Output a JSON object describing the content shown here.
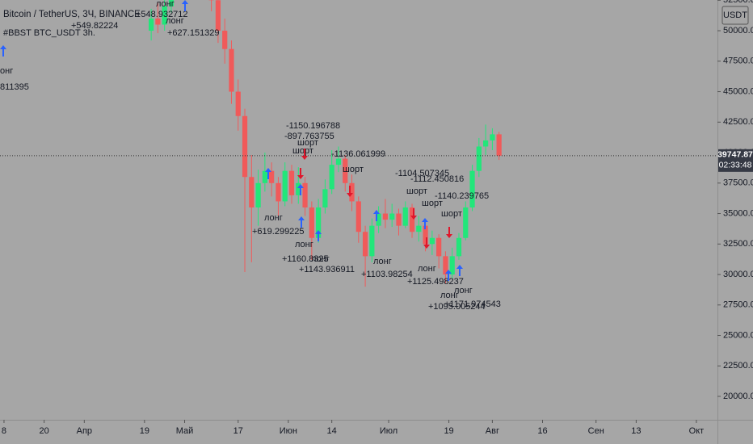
{
  "chart_data": {
    "type": "candlestick",
    "title": "Bitcoin / TetherUS, 3Ч, BINANCE",
    "subtitle": "#BBST BTC_USDT 3h.",
    "currency": "USDT",
    "up_color": "#22e67a",
    "down_color": "#f05a5a",
    "x": [
      44,
      46,
      48,
      50,
      52,
      54,
      56,
      58,
      60,
      62,
      64,
      66,
      68,
      70,
      72,
      74,
      76,
      78,
      80,
      82,
      84,
      86,
      88,
      90,
      92,
      94,
      96,
      98,
      100,
      102,
      104,
      106,
      108,
      110,
      112,
      114,
      116,
      118,
      120,
      122,
      124,
      126,
      128,
      130,
      132,
      134,
      136,
      138,
      140,
      142,
      144,
      146,
      148
    ],
    "open": [
      50000,
      51000,
      50500,
      52000,
      55000,
      56000,
      57000,
      56500,
      55000,
      54000,
      52500,
      50000,
      48500,
      45000,
      43000,
      38000,
      35500,
      37500,
      38500,
      37500,
      36000,
      38500,
      36500,
      37500,
      35500,
      33000,
      35500,
      37000,
      39000,
      39500,
      37500,
      36000,
      33500,
      31500,
      34000,
      35000,
      34500,
      35000,
      34000,
      35500,
      33500,
      34000,
      32500,
      33000,
      31500,
      30000,
      31500,
      33000,
      35500,
      38500,
      40500,
      41000,
      41500
    ],
    "high": [
      51800,
      52300,
      53000,
      55800,
      57000,
      58000,
      58200,
      57000,
      56000,
      54800,
      53200,
      51000,
      49200,
      46000,
      43600,
      39800,
      38600,
      40000,
      39200,
      38000,
      39200,
      39000,
      38800,
      38000,
      36000,
      36200,
      37800,
      40200,
      40500,
      39800,
      38200,
      36400,
      34000,
      34600,
      35600,
      36200,
      35800,
      35400,
      36000,
      35800,
      34800,
      34300,
      33600,
      33300,
      31900,
      32200,
      33400,
      36000,
      39000,
      41200,
      42300,
      42000,
      41700
    ],
    "low": [
      49200,
      49800,
      50000,
      51500,
      54200,
      55300,
      55600,
      54000,
      53000,
      51600,
      49000,
      47300,
      44000,
      41800,
      30200,
      31000,
      34000,
      36800,
      36400,
      34800,
      35600,
      35800,
      35800,
      34800,
      31200,
      32600,
      35000,
      36600,
      38400,
      36800,
      35200,
      32600,
      29000,
      31000,
      33400,
      33800,
      33900,
      33200,
      33800,
      33000,
      32700,
      31900,
      31600,
      30500,
      29300,
      29700,
      31200,
      32800,
      35200,
      38000,
      39800,
      40200,
      39400
    ],
    "close": [
      51000,
      50500,
      52000,
      55000,
      56000,
      57000,
      56500,
      55000,
      54000,
      52500,
      50000,
      48500,
      45000,
      43000,
      38000,
      35500,
      37500,
      38500,
      37500,
      36000,
      38500,
      36500,
      37500,
      35500,
      33000,
      35500,
      37000,
      39000,
      39500,
      37500,
      36000,
      33500,
      31500,
      34000,
      35000,
      34500,
      35000,
      34000,
      35500,
      33500,
      34000,
      32500,
      33000,
      31500,
      30000,
      31500,
      33000,
      35500,
      38500,
      40500,
      41000,
      41500,
      39748
    ],
    "xlim": [
      -1.2,
      213.3
    ],
    "xticks": [
      {
        "value": 0,
        "label": "8"
      },
      {
        "value": 12,
        "label": "20"
      },
      {
        "value": 24,
        "label": "Апр"
      },
      {
        "value": 42,
        "label": "19"
      },
      {
        "value": 54,
        "label": "Май"
      },
      {
        "value": 70,
        "label": "17"
      },
      {
        "value": 85,
        "label": "Июн"
      },
      {
        "value": 98,
        "label": "14"
      },
      {
        "value": 115,
        "label": "Июл"
      },
      {
        "value": 133,
        "label": "19"
      },
      {
        "value": 146,
        "label": "Авг"
      },
      {
        "value": 161,
        "label": "16"
      },
      {
        "value": 177,
        "label": "Сен"
      },
      {
        "value": 189,
        "label": "13"
      },
      {
        "value": 207,
        "label": "Окт"
      }
    ],
    "ylim": [
      18080,
      52520
    ],
    "yticks": [
      {
        "value": 20000,
        "label": "20000.00"
      },
      {
        "value": 22500,
        "label": "22500.00"
      },
      {
        "value": 25000,
        "label": "25000.00"
      },
      {
        "value": 27500,
        "label": "27500.00"
      },
      {
        "value": 30000,
        "label": "30000.00"
      },
      {
        "value": 32500,
        "label": "32500.00"
      },
      {
        "value": 35000,
        "label": "35000.00"
      },
      {
        "value": 37500,
        "label": "37500.00"
      },
      {
        "value": 40000,
        "label": "40000.00"
      },
      {
        "value": 42500,
        "label": "42500.00"
      },
      {
        "value": 45000,
        "label": "45000.00"
      },
      {
        "value": 47500,
        "label": "47500.00"
      },
      {
        "value": 50000,
        "label": "50000.00"
      },
      {
        "value": 52500,
        "label": "52500.00"
      }
    ],
    "last_price": 39747.87,
    "countdown": "02:33:48",
    "annotations": [
      "онг",
      "811395",
      "+549.82224",
      "+548.932712",
      "лонг",
      "лонг",
      "+627.151329",
      "-1150.196788",
      "-897.763755",
      "шорт",
      "шорт",
      "лонг",
      "+619.299225",
      "лонг",
      "+1160.8325",
      "лонг",
      "+1143.936911",
      "-1136.061999",
      "шорт",
      "лонг",
      "+1103.98254",
      "-1104.507345",
      "-1112.450816",
      "шорт",
      "шорт",
      "-1140.239765",
      "шорт",
      "лонг",
      "+1125.498237",
      "лонг",
      "лонг",
      "+1171.974543",
      "+1095.005244"
    ]
  }
}
